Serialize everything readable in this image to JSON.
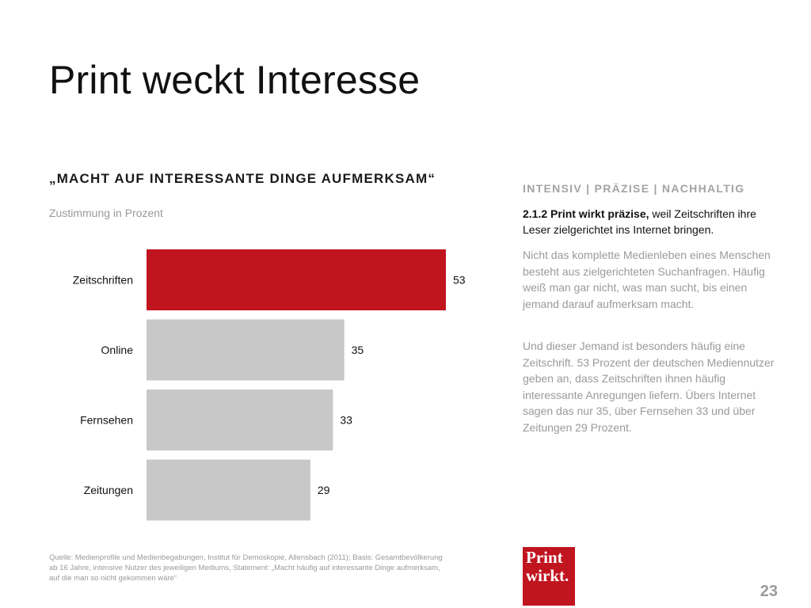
{
  "slide": {
    "title": "Print weckt Interesse",
    "page_number": "23"
  },
  "chart_data": {
    "type": "bar",
    "orientation": "horizontal",
    "title": "„MACHT AUF INTERESSANTE DINGE AUFMERKSAM“",
    "subtitle": "Zustimmung in Prozent",
    "categories": [
      "Zeitschriften",
      "Online",
      "Fernsehen",
      "Zeitungen"
    ],
    "values": [
      53,
      35,
      33,
      29
    ],
    "value_labels": [
      "53",
      "35",
      "33",
      "29"
    ],
    "highlight_index": 0,
    "colors": {
      "highlight": "#c0141f",
      "default": "#c8c8c8"
    },
    "xlim": [
      0,
      53
    ],
    "grid": false,
    "legend": "none"
  },
  "sidebar": {
    "heading": "INTENSIV | PRÄZISE | NACHHALTIG",
    "lead_bold": "2.1.2 Print wirkt präzise,",
    "lead_rest": " weil Zeitschriften ihre Leser zielgerichtet ins Internet bringen.",
    "paragraphs": [
      "Nicht das komplette Medienleben eines Menschen besteht aus zielgerichteten Suchanfragen. Häufig weiß man gar nicht, was man sucht, bis einen jemand darauf aufmerksam macht.",
      "Und dieser Jemand ist besonders häufig eine Zeitschrift. 53 Prozent der deutschen Mediennutzer geben an, dass Zeitschriften ihnen häufig interessante Anregungen liefern. Übers Internet sagen das nur 35, über Fernsehen 33 und über Zeitungen 29 Prozent."
    ]
  },
  "footer": {
    "source": "Quelle: Medienprofile und Medienbegabungen, Institut für Demoskopie, Allensbach (2011); Basis: Gesamtbevölkerung ab 16 Jahre, intensive Nutzer des jeweiligen Mediums, Statement: „Macht häufig auf interessante Dinge aufmerksam, auf die man so nicht gekommen wäre“",
    "logo_line1": "Print",
    "logo_line2": "wirkt."
  }
}
